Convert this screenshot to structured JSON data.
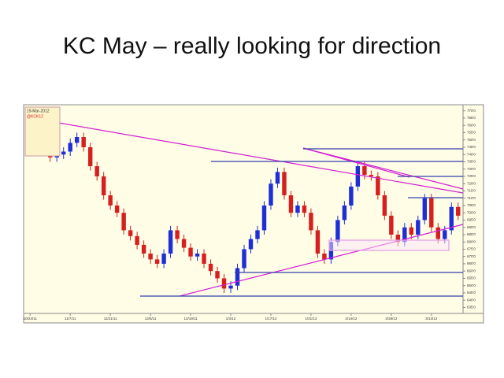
{
  "chart_data": {
    "type": "candlestick",
    "title": "KC May – really looking for direction",
    "legend_lines": [
      "19-Mar-2012",
      "@KCK12"
    ],
    "categories": [
      "10/24/11",
      null,
      null,
      null,
      null,
      null,
      "11/7/11",
      null,
      null,
      null,
      null,
      null,
      "11/21/11",
      null,
      null,
      null,
      null,
      null,
      "12/5/11",
      null,
      null,
      null,
      null,
      null,
      "12/19/11",
      null,
      null,
      null,
      null,
      null,
      "1/3/12",
      null,
      null,
      null,
      null,
      null,
      "1/17/12",
      null,
      null,
      null,
      null,
      null,
      "1/31/12",
      null,
      null,
      null,
      null,
      null,
      "2/14/12",
      null,
      null,
      null,
      null,
      null,
      "2/28/12",
      null,
      null,
      null,
      null,
      null,
      "3/13/12",
      null,
      null,
      null,
      null
    ],
    "open": [
      755,
      752,
      748,
      745,
      738,
      740,
      742,
      748,
      752,
      745,
      732,
      725,
      712,
      705,
      700,
      688,
      684,
      678,
      672,
      668,
      665,
      672,
      688,
      682,
      676,
      670,
      672,
      665,
      660,
      655,
      648,
      650,
      662,
      675,
      682,
      688,
      705,
      720,
      728,
      712,
      700,
      705,
      700,
      688,
      672,
      668,
      680,
      695,
      705,
      718,
      732,
      726,
      725,
      712,
      698,
      685,
      680,
      690,
      685,
      695,
      710,
      690,
      682,
      688,
      704
    ],
    "high": [
      758,
      755,
      751,
      748,
      743,
      745,
      751,
      755,
      755,
      748,
      735,
      728,
      715,
      708,
      703,
      691,
      687,
      681,
      675,
      671,
      675,
      691,
      691,
      685,
      679,
      675,
      675,
      668,
      663,
      658,
      653,
      665,
      678,
      685,
      691,
      708,
      723,
      731,
      731,
      715,
      708,
      708,
      703,
      691,
      675,
      683,
      698,
      708,
      721,
      735,
      735,
      729,
      728,
      715,
      701,
      688,
      693,
      693,
      698,
      713,
      713,
      693,
      691,
      707,
      707
    ],
    "low": [
      749,
      745,
      742,
      735,
      735,
      737,
      739,
      745,
      742,
      729,
      722,
      709,
      702,
      697,
      685,
      681,
      675,
      669,
      665,
      662,
      662,
      669,
      679,
      673,
      667,
      667,
      662,
      657,
      652,
      645,
      645,
      647,
      659,
      672,
      679,
      685,
      702,
      717,
      709,
      697,
      697,
      697,
      685,
      669,
      665,
      665,
      677,
      692,
      702,
      715,
      723,
      722,
      709,
      695,
      682,
      677,
      677,
      682,
      682,
      692,
      687,
      679,
      679,
      685,
      695
    ],
    "close": [
      752,
      748,
      745,
      738,
      740,
      742,
      748,
      752,
      745,
      732,
      725,
      712,
      705,
      700,
      688,
      684,
      678,
      672,
      668,
      665,
      672,
      688,
      682,
      676,
      670,
      672,
      665,
      660,
      655,
      648,
      650,
      662,
      675,
      682,
      688,
      705,
      720,
      728,
      712,
      700,
      705,
      700,
      688,
      672,
      668,
      680,
      695,
      705,
      718,
      732,
      726,
      725,
      712,
      698,
      685,
      680,
      690,
      685,
      695,
      710,
      690,
      682,
      688,
      704,
      698
    ],
    "up_color": "#1f2fd6",
    "down_color": "#d61f1f",
    "ylim": [
      632,
      772
    ],
    "yticks": [
      {
        "value": 635,
        "label": "635'0"
      },
      {
        "value": 640,
        "label": "640'0"
      },
      {
        "value": 645,
        "label": "645'0"
      },
      {
        "value": 650,
        "label": "650'0"
      },
      {
        "value": 655,
        "label": "655'0"
      },
      {
        "value": 660,
        "label": "660'0"
      },
      {
        "value": 665,
        "label": "665'0"
      },
      {
        "value": 670,
        "label": "670'0"
      },
      {
        "value": 675,
        "label": "675'0"
      },
      {
        "value": 680,
        "label": "680'0"
      },
      {
        "value": 685,
        "label": "685'0"
      },
      {
        "value": 690,
        "label": "690'0"
      },
      {
        "value": 695,
        "label": "695'0"
      },
      {
        "value": 700,
        "label": "700'0"
      },
      {
        "value": 705,
        "label": "705'0"
      },
      {
        "value": 710,
        "label": "710'0"
      },
      {
        "value": 715,
        "label": "715'0"
      },
      {
        "value": 720,
        "label": "720'0"
      },
      {
        "value": 725,
        "label": "725'0"
      },
      {
        "value": 730,
        "label": "730'0"
      },
      {
        "value": 735,
        "label": "735'0"
      },
      {
        "value": 740,
        "label": "740'0"
      },
      {
        "value": 745,
        "label": "745'0"
      },
      {
        "value": 750,
        "label": "750'0"
      },
      {
        "value": 755,
        "label": "755'0"
      },
      {
        "value": 760,
        "label": "760'0"
      },
      {
        "value": 765,
        "label": "765'0"
      },
      {
        "value": 770,
        "label": "770'0"
      }
    ]
  }
}
